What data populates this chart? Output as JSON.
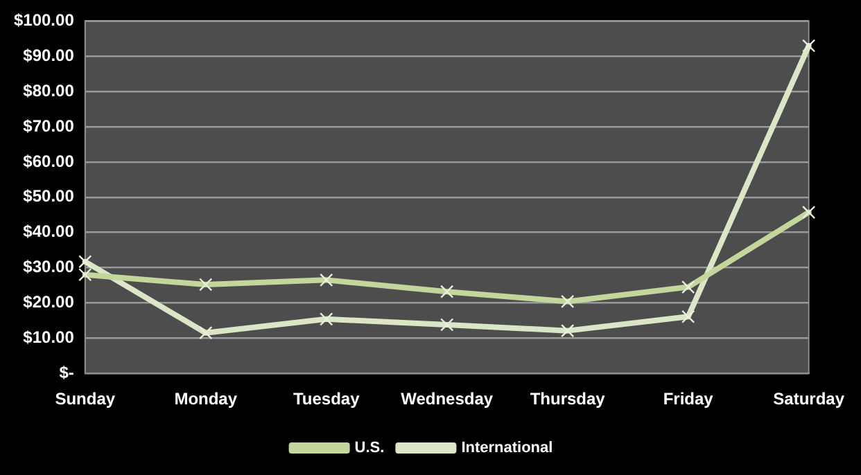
{
  "chart_data": {
    "type": "line",
    "categories": [
      "Sunday",
      "Monday",
      "Tuesday",
      "Wednesday",
      "Thursday",
      "Friday",
      "Saturday"
    ],
    "series": [
      {
        "name": "U.S.",
        "color": "#c3d69b",
        "marker": "cross",
        "values": [
          28,
          25.2,
          26.5,
          23.2,
          20.4,
          24.5,
          45.7
        ]
      },
      {
        "name": "International",
        "color": "#dbe6c6",
        "marker": "cross",
        "values": [
          31.7,
          11.5,
          15.4,
          13.8,
          12.1,
          16.1,
          93
        ]
      }
    ],
    "ylim": [
      0,
      100
    ],
    "yticks": [
      {
        "value": 0,
        "label": "$-"
      },
      {
        "value": 10,
        "label": "$10.00"
      },
      {
        "value": 20,
        "label": "$20.00"
      },
      {
        "value": 30,
        "label": "$30.00"
      },
      {
        "value": 40,
        "label": "$40.00"
      },
      {
        "value": 50,
        "label": "$50.00"
      },
      {
        "value": 60,
        "label": "$60.00"
      },
      {
        "value": 70,
        "label": "$70.00"
      },
      {
        "value": 80,
        "label": "$80.00"
      },
      {
        "value": 90,
        "label": "$90.00"
      },
      {
        "value": 100,
        "label": "$100.00"
      }
    ],
    "grid": "y",
    "legend": "bottom",
    "line_style": "solid"
  }
}
